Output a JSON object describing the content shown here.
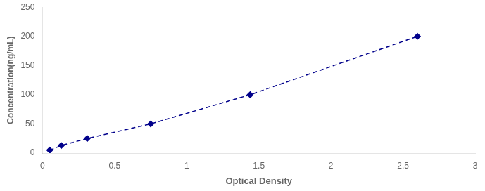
{
  "chart_data": {
    "type": "line",
    "xlabel": "Optical Density",
    "ylabel": "Concentration(ng/mL)",
    "x": [
      0.05,
      0.13,
      0.31,
      0.75,
      1.44,
      2.6
    ],
    "values": [
      5,
      13,
      25,
      50,
      100,
      200
    ],
    "color": "#00008B",
    "marker": "diamond",
    "line_style": "dashed",
    "xlim": [
      0,
      3
    ],
    "ylim": [
      0,
      250
    ],
    "xticks": [
      0,
      0.5,
      1,
      1.5,
      2,
      2.5,
      3
    ],
    "yticks": [
      0,
      50,
      100,
      150,
      200,
      250
    ],
    "grid": false
  }
}
